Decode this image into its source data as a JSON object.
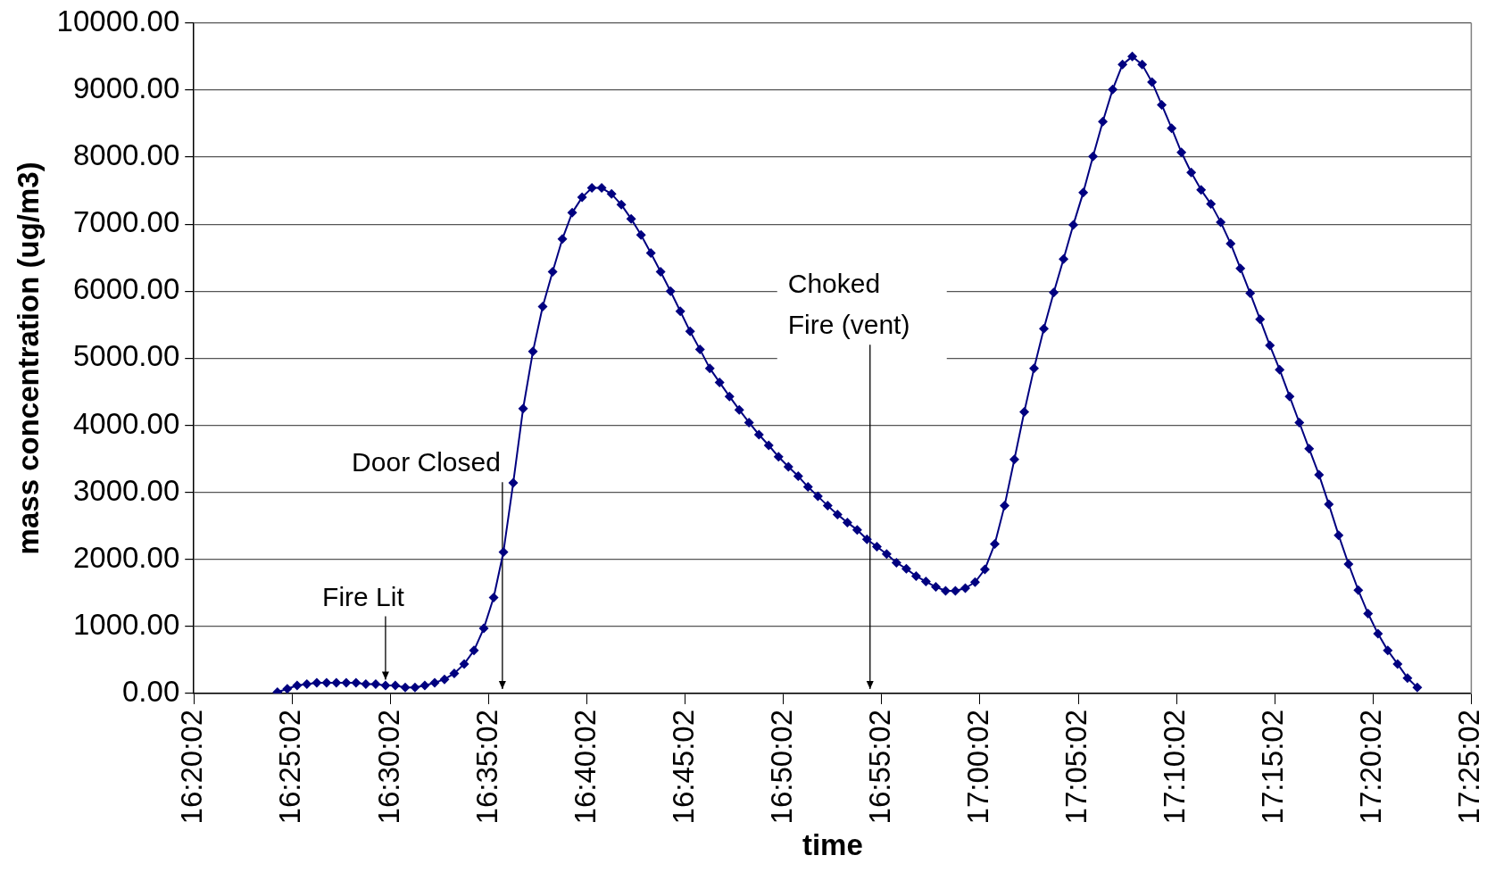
{
  "chart_data": {
    "type": "line",
    "xlabel": "time",
    "ylabel": "mass concentration (ug/m3)",
    "xlim": [
      16.333889,
      17.417222
    ],
    "xticks": [
      {
        "value": 16.333889,
        "label": "16:20:02"
      },
      {
        "value": 16.417222,
        "label": "16:25:02"
      },
      {
        "value": 16.500556,
        "label": "16:30:02"
      },
      {
        "value": 16.583889,
        "label": "16:35:02"
      },
      {
        "value": 16.667222,
        "label": "16:40:02"
      },
      {
        "value": 16.750556,
        "label": "16:45:02"
      },
      {
        "value": 16.833889,
        "label": "16:50:02"
      },
      {
        "value": 16.917222,
        "label": "16:55:02"
      },
      {
        "value": 17.000556,
        "label": "17:00:02"
      },
      {
        "value": 17.083889,
        "label": "17:05:02"
      },
      {
        "value": 17.167222,
        "label": "17:10:02"
      },
      {
        "value": 17.250556,
        "label": "17:15:02"
      },
      {
        "value": 17.333889,
        "label": "17:20:02"
      },
      {
        "value": 17.417222,
        "label": "17:25:02"
      }
    ],
    "ylim": [
      0,
      10000
    ],
    "yticks": [
      {
        "value": 0,
        "label": "0.00"
      },
      {
        "value": 1000,
        "label": "1000.00"
      },
      {
        "value": 2000,
        "label": "2000.00"
      },
      {
        "value": 3000,
        "label": "3000.00"
      },
      {
        "value": 4000,
        "label": "4000.00"
      },
      {
        "value": 5000,
        "label": "5000.00"
      },
      {
        "value": 6000,
        "label": "6000.00"
      },
      {
        "value": 7000,
        "label": "7000.00"
      },
      {
        "value": 8000,
        "label": "8000.00"
      },
      {
        "value": 9000,
        "label": "9000.00"
      },
      {
        "value": 10000,
        "label": "10000.00"
      }
    ],
    "grid": "y",
    "legend": false,
    "marker": "diamond",
    "line_style": "solid",
    "annotations": [
      {
        "text": "Fire Lit",
        "x": 16.4964,
        "y": 140
      },
      "Door Closed",
      "Choked\nFire (vent)"
    ],
    "series": [
      {
        "color": "#000080",
        "x": [
          16.4047,
          16.4131,
          16.4214,
          16.4297,
          16.4381,
          16.4464,
          16.4547,
          16.4631,
          16.4714,
          16.4797,
          16.4881,
          16.4964,
          16.5047,
          16.5131,
          16.5214,
          16.5297,
          16.5381,
          16.5464,
          16.5547,
          16.5631,
          16.5714,
          16.5797,
          16.5881,
          16.5964,
          16.6047,
          16.6131,
          16.6214,
          16.6297,
          16.6381,
          16.6464,
          16.6547,
          16.6631,
          16.6714,
          16.6797,
          16.6881,
          16.6964,
          16.7047,
          16.7131,
          16.7214,
          16.7297,
          16.7381,
          16.7464,
          16.7547,
          16.7631,
          16.7714,
          16.7797,
          16.7881,
          16.7964,
          16.8047,
          16.8131,
          16.8214,
          16.8297,
          16.8381,
          16.8464,
          16.8547,
          16.8631,
          16.8714,
          16.8797,
          16.8881,
          16.8964,
          16.9047,
          16.9131,
          16.9214,
          16.9297,
          16.9381,
          16.9464,
          16.9547,
          16.9631,
          16.9714,
          16.9797,
          16.9881,
          16.9964,
          17.0047,
          17.0131,
          17.0214,
          17.0297,
          17.0381,
          17.0464,
          17.0547,
          17.0631,
          17.0714,
          17.0797,
          17.0881,
          17.0964,
          17.1047,
          17.1131,
          17.1214,
          17.1297,
          17.1381,
          17.1464,
          17.1547,
          17.1631,
          17.1714,
          17.1797,
          17.1881,
          17.1964,
          17.2047,
          17.2131,
          17.2214,
          17.2297,
          17.2381,
          17.2464,
          17.2547,
          17.2631,
          17.2714,
          17.2797,
          17.2881,
          17.2964,
          17.3047,
          17.3131,
          17.3214,
          17.3297,
          17.3381,
          17.3464,
          17.3547,
          17.3631,
          17.3714
        ],
        "values": [
          20,
          70,
          120,
          140,
          160,
          160,
          160,
          160,
          160,
          140,
          140,
          120,
          120,
          90,
          90,
          120,
          160,
          210,
          300,
          440,
          640,
          970,
          1430,
          2110,
          3140,
          4250,
          5100,
          5770,
          6290,
          6780,
          7170,
          7400,
          7540,
          7540,
          7450,
          7290,
          7080,
          6840,
          6570,
          6290,
          6000,
          5700,
          5400,
          5130,
          4850,
          4640,
          4430,
          4230,
          4040,
          3860,
          3700,
          3530,
          3380,
          3240,
          3080,
          2940,
          2800,
          2670,
          2550,
          2440,
          2300,
          2190,
          2080,
          1950,
          1860,
          1750,
          1670,
          1590,
          1530,
          1530,
          1570,
          1660,
          1850,
          2230,
          2800,
          3490,
          4200,
          4850,
          5440,
          5980,
          6480,
          6990,
          7470,
          8010,
          8530,
          9010,
          9380,
          9500,
          9380,
          9120,
          8780,
          8430,
          8070,
          7770,
          7510,
          7300,
          7030,
          6710,
          6340,
          5970,
          5580,
          5190,
          4830,
          4430,
          4040,
          3650,
          3260,
          2820,
          2360,
          1930,
          1540,
          1190,
          890,
          640,
          440,
          230,
          90
        ]
      }
    ]
  }
}
